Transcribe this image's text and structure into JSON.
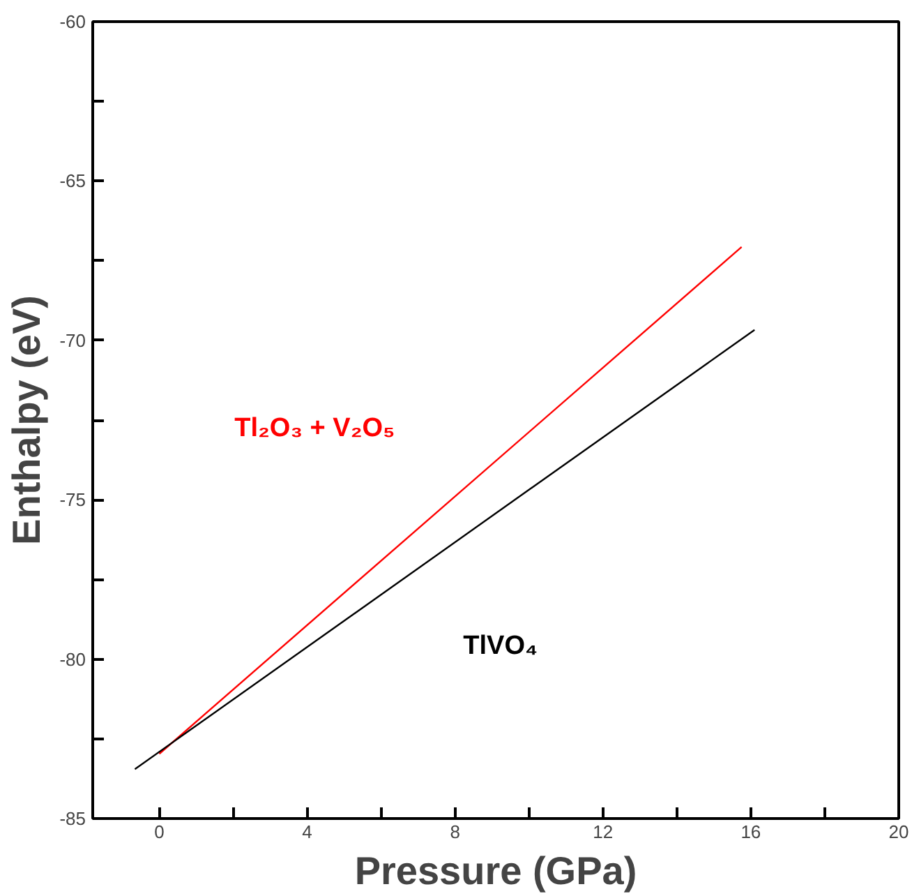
{
  "chart_data": {
    "type": "line",
    "xlabel": "Pressure (GPa)",
    "ylabel": "Enthalpy (eV)",
    "xlim": [
      -1.8,
      20
    ],
    "ylim": [
      -85,
      -60
    ],
    "xticks": [
      0,
      {
        "value": 2,
        "label": null
      },
      4,
      {
        "value": 6,
        "label": null
      },
      8,
      {
        "value": 10,
        "label": null
      },
      12,
      {
        "value": 14,
        "label": null
      },
      16,
      {
        "value": 18,
        "label": null
      },
      20
    ],
    "yticks": [
      -85,
      {
        "value": -82.5,
        "label": null
      },
      -80,
      {
        "value": -77.5,
        "label": null
      },
      -75,
      {
        "value": -72.5,
        "label": null
      },
      -70,
      {
        "value": -67.5,
        "label": null
      },
      -65,
      {
        "value": -62.5,
        "label": null
      },
      -60
    ],
    "grid": false,
    "marker": "none",
    "line_style": "solid",
    "series": [
      {
        "name": "Tl₂O₃ + V₂O₅",
        "color": "#ff0000",
        "x": [
          0,
          15.75
        ],
        "values": [
          -82.97,
          -67.07
        ]
      },
      {
        "name": "TlVO₄",
        "color": "#000000",
        "x": [
          -0.66,
          16.1
        ],
        "values": [
          -83.45,
          -69.67
        ]
      }
    ]
  }
}
